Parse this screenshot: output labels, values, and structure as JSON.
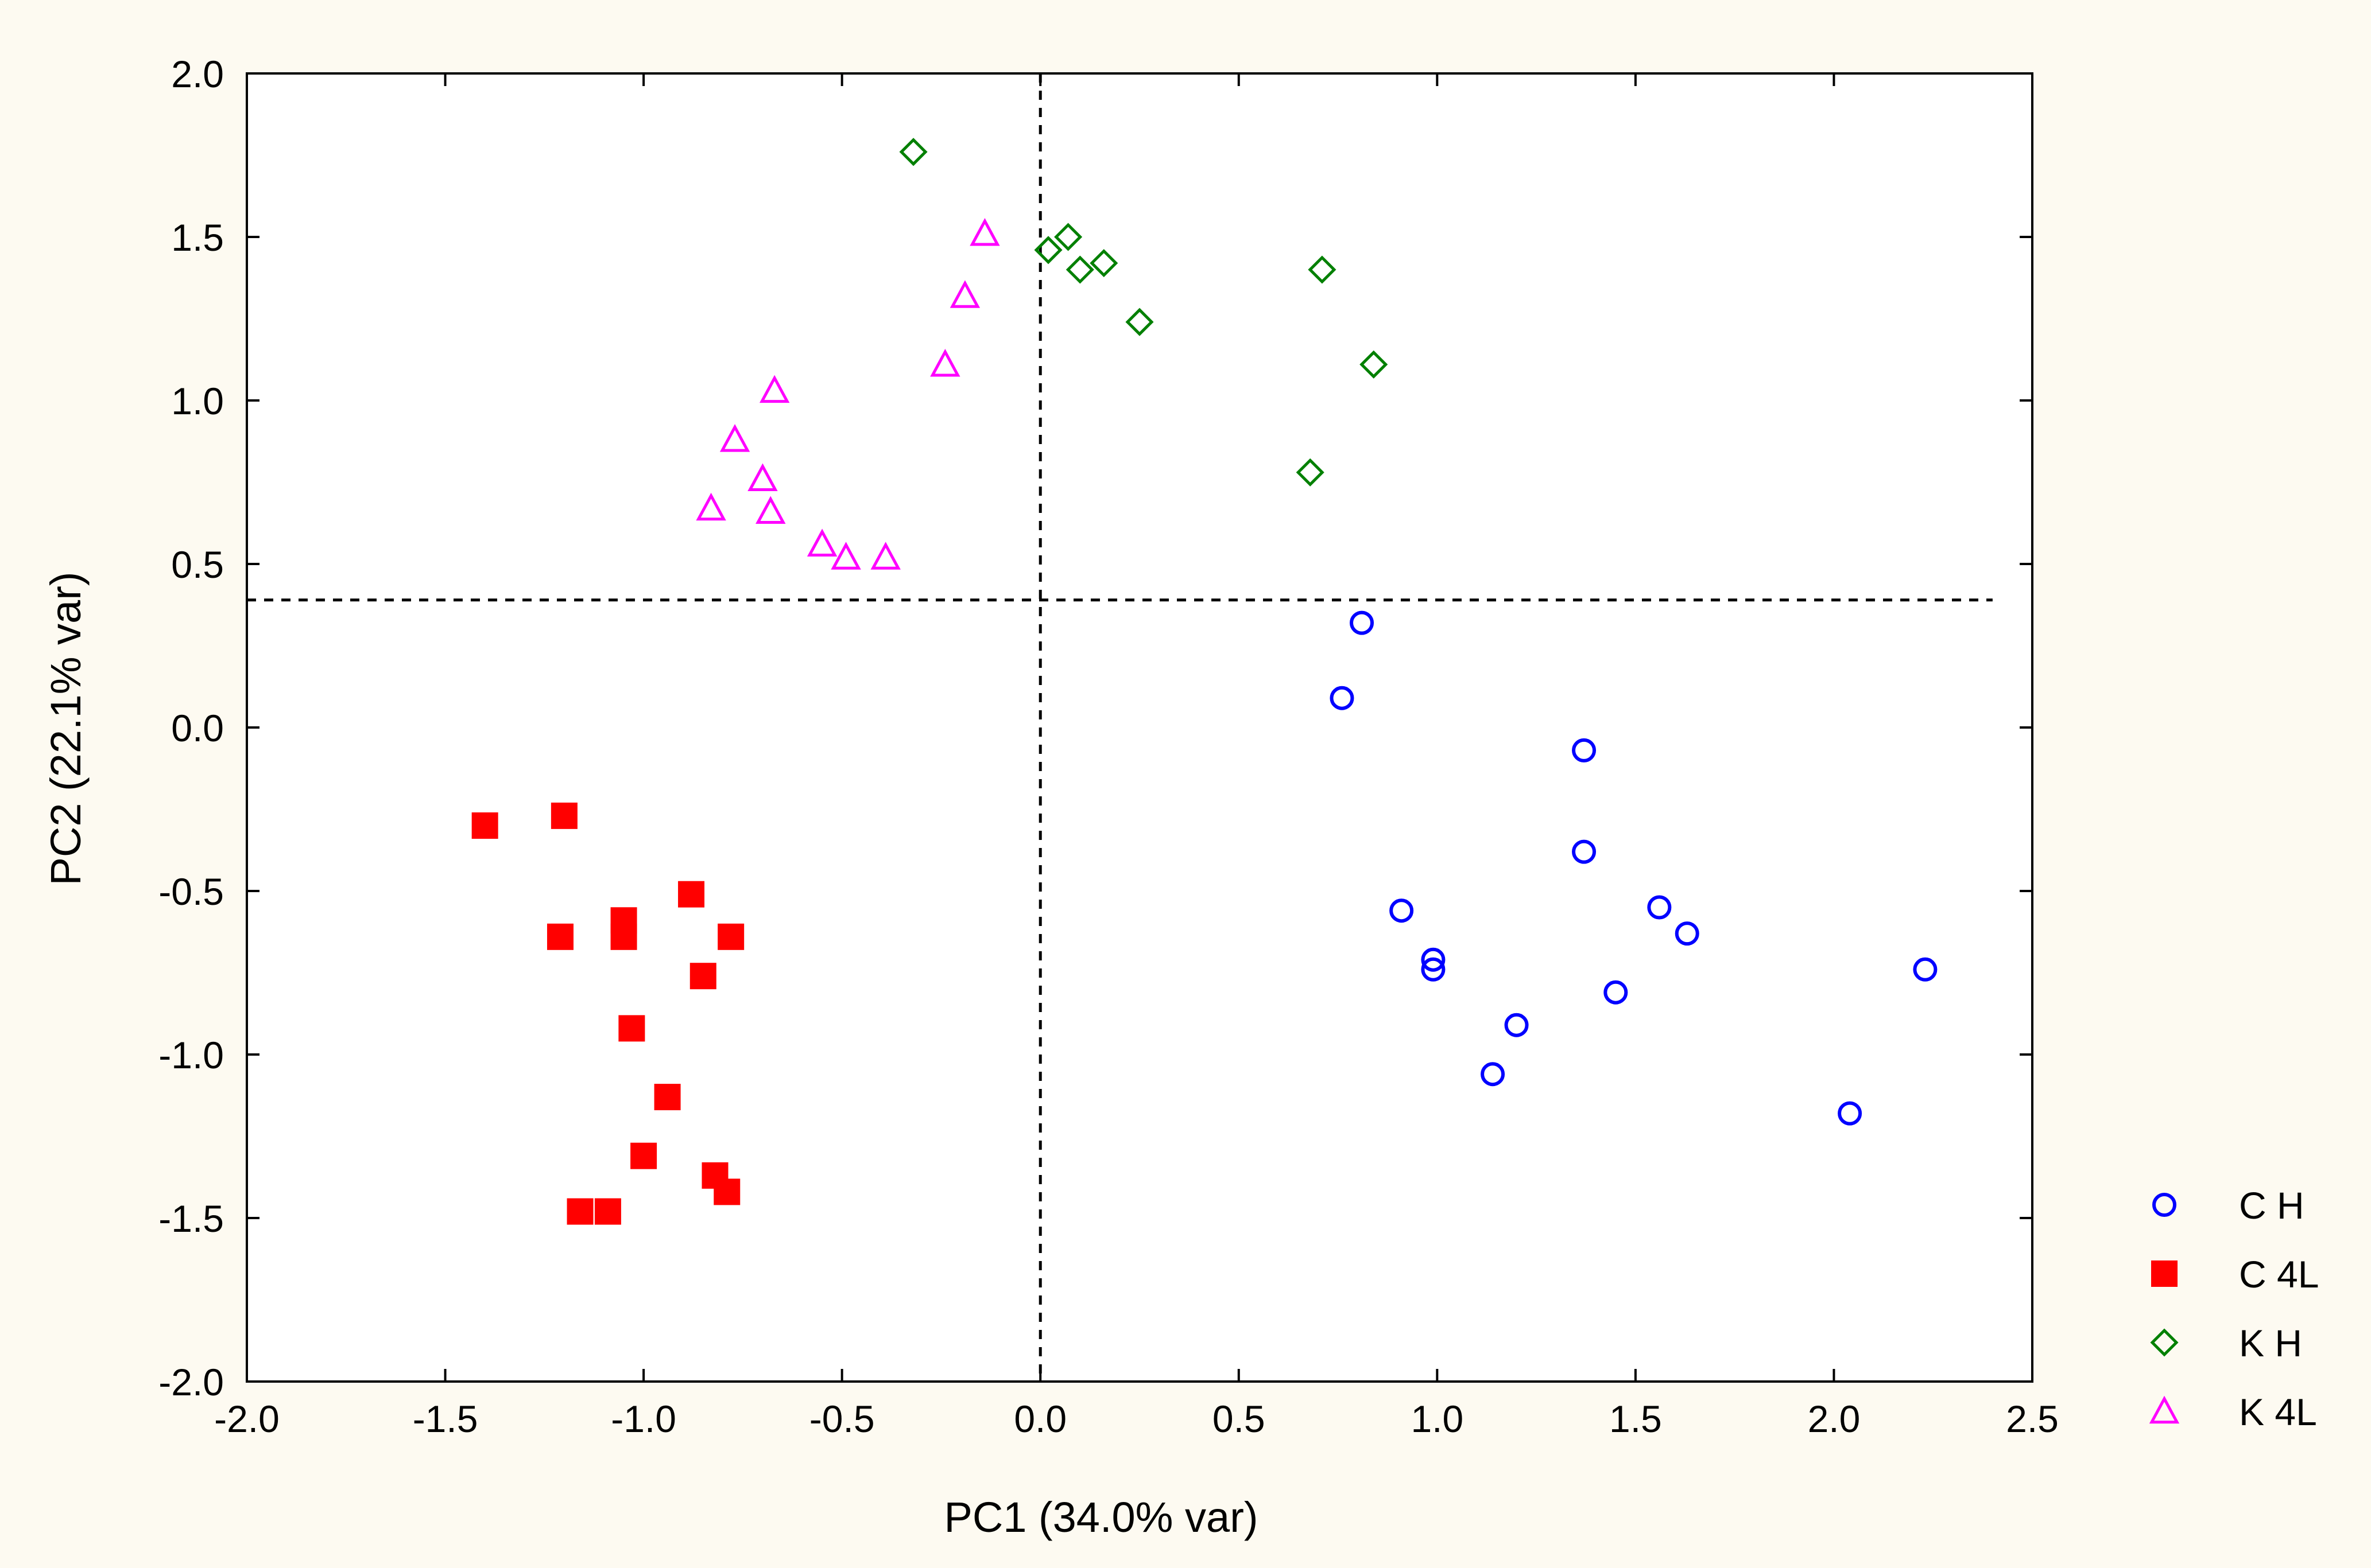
{
  "chart_data": {
    "type": "scatter",
    "title": "",
    "xlabel": "PC1 (34.0% var)",
    "ylabel": "PC2 (22.1% var)",
    "xlim": [
      -2.0,
      2.5
    ],
    "ylim": [
      -2.0,
      2.0
    ],
    "xticks": [
      "-2.0",
      "-1.5",
      "-1.0",
      "-0.5",
      "0.0",
      "0.5",
      "1.0",
      "1.5",
      "2.0",
      "2.5"
    ],
    "yticks": [
      "2.0",
      "1.5",
      "1.0",
      "0.5",
      "0.0",
      "-0.5",
      "-1.0",
      "-1.5",
      "-2.0"
    ],
    "reference_lines": {
      "vertical_x": 0.0,
      "horizontal_y": 0.39
    },
    "legend_position": "bottom-right, outside plot",
    "series": [
      {
        "name": "C H",
        "marker": "open-circle",
        "color": "#0000ff",
        "points": [
          [
            0.81,
            0.32
          ],
          [
            0.76,
            0.09
          ],
          [
            1.37,
            -0.07
          ],
          [
            1.37,
            -0.38
          ],
          [
            0.91,
            -0.56
          ],
          [
            0.99,
            -0.71
          ],
          [
            0.99,
            -0.74
          ],
          [
            1.56,
            -0.55
          ],
          [
            1.63,
            -0.63
          ],
          [
            2.23,
            -0.74
          ],
          [
            1.45,
            -0.81
          ],
          [
            1.2,
            -0.91
          ],
          [
            1.14,
            -1.06
          ],
          [
            2.04,
            -1.18
          ]
        ]
      },
      {
        "name": "C 4L",
        "marker": "filled-square",
        "color": "#ff0000",
        "points": [
          [
            -1.4,
            -0.3
          ],
          [
            -1.2,
            -0.27
          ],
          [
            -1.21,
            -0.64
          ],
          [
            -1.05,
            -0.59
          ],
          [
            -1.05,
            -0.64
          ],
          [
            -0.88,
            -0.51
          ],
          [
            -0.78,
            -0.64
          ],
          [
            -0.85,
            -0.76
          ],
          [
            -1.03,
            -0.92
          ],
          [
            -0.94,
            -1.13
          ],
          [
            -1.0,
            -1.31
          ],
          [
            -0.82,
            -1.37
          ],
          [
            -0.79,
            -1.42
          ],
          [
            -1.16,
            -1.48
          ],
          [
            -1.09,
            -1.48
          ]
        ]
      },
      {
        "name": "K H",
        "marker": "open-diamond",
        "color": "#008000",
        "points": [
          [
            -0.32,
            1.76
          ],
          [
            0.02,
            1.46
          ],
          [
            0.07,
            1.5
          ],
          [
            0.1,
            1.4
          ],
          [
            0.16,
            1.42
          ],
          [
            0.25,
            1.24
          ],
          [
            0.71,
            1.4
          ],
          [
            0.84,
            1.11
          ],
          [
            0.68,
            0.78
          ]
        ]
      },
      {
        "name": "K 4L",
        "marker": "open-triangle",
        "color": "#ff00ff",
        "points": [
          [
            -0.14,
            1.51
          ],
          [
            -0.19,
            1.32
          ],
          [
            -0.24,
            1.11
          ],
          [
            -0.67,
            1.03
          ],
          [
            -0.77,
            0.88
          ],
          [
            -0.7,
            0.76
          ],
          [
            -0.83,
            0.67
          ],
          [
            -0.68,
            0.66
          ],
          [
            -0.55,
            0.56
          ],
          [
            -0.49,
            0.52
          ],
          [
            -0.39,
            0.52
          ]
        ]
      }
    ]
  }
}
